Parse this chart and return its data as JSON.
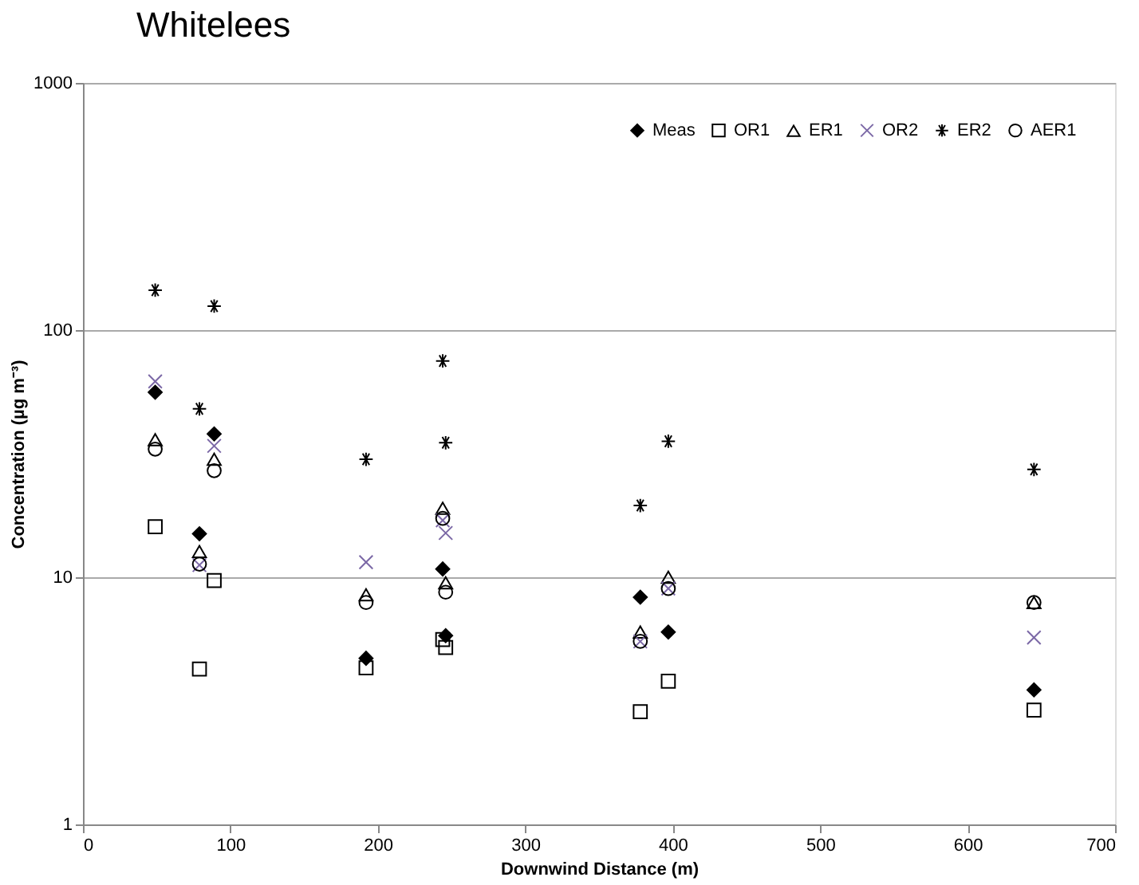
{
  "chart_data": {
    "type": "scatter",
    "title": "Whitelees",
    "xlabel": "Downwind Distance (m)",
    "ylabel": "Concentration (µg m⁻³)",
    "x": [
      49,
      79,
      89,
      192,
      244,
      246,
      378,
      397,
      645
    ],
    "series": [
      {
        "name": "Meas",
        "color": "#000000",
        "marker": "diamond",
        "values": [
          56,
          15,
          38,
          4.7,
          10.8,
          5.8,
          8.3,
          6.0,
          3.5
        ]
      },
      {
        "name": "OR1",
        "color": "#000000",
        "marker": "square",
        "values": [
          16,
          4.25,
          9.7,
          4.3,
          5.6,
          5.2,
          2.86,
          3.8,
          2.9
        ]
      },
      {
        "name": "ER1",
        "color": "#000000",
        "marker": "triangle",
        "values": [
          36,
          12.7,
          30,
          8.5,
          19,
          9.5,
          6.0,
          10,
          7.9
        ]
      },
      {
        "name": "OR2",
        "color": "#7b68a6",
        "marker": "cross",
        "values": [
          62,
          11.2,
          34,
          11.5,
          17,
          15.1,
          5.5,
          9,
          5.7
        ]
      },
      {
        "name": "ER2",
        "color": "#000000",
        "marker": "cross",
        "values": [
          145,
          48,
          125,
          30,
          75,
          35,
          19.5,
          35.5,
          27.3
        ]
      },
      {
        "name": "AER1",
        "color": "#000000",
        "marker": "circle",
        "values": [
          33,
          11.3,
          27,
          7.9,
          17.3,
          8.7,
          5.5,
          9.0,
          7.9
        ]
      }
    ],
    "xlim": [
      0,
      700
    ],
    "xticks": [
      0,
      100,
      200,
      300,
      400,
      500,
      600,
      700
    ],
    "ylim": [
      1,
      1000
    ],
    "yticks": [
      1,
      10,
      100,
      1000
    ],
    "log": "y",
    "grid": "y",
    "legend": "top right"
  }
}
